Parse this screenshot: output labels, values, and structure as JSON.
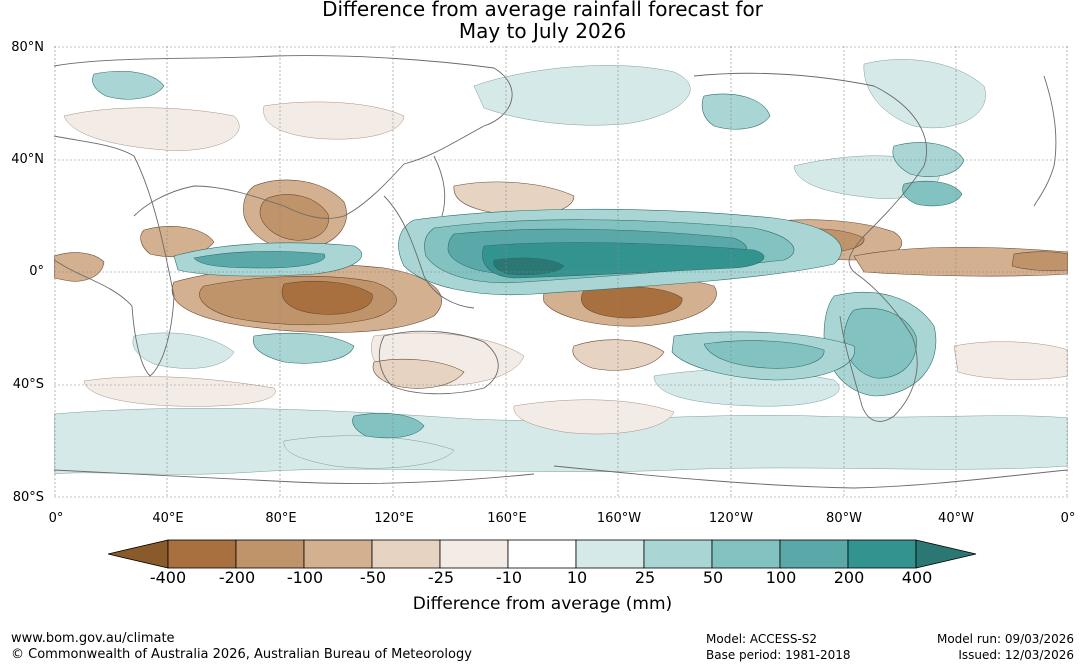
{
  "title": {
    "line1": "Difference from average rainfall forecast for",
    "line2": "May to July 2026"
  },
  "axes": {
    "y_ticks": [
      "80°N",
      "40°N",
      "0°",
      "40°S",
      "80°S"
    ],
    "x_ticks": [
      "0°",
      "40°E",
      "80°E",
      "120°E",
      "160°E",
      "160°W",
      "120°W",
      "80°W",
      "40°W",
      "0°"
    ]
  },
  "colorbar": {
    "title": "Difference from average (mm)",
    "labels": [
      "-400",
      "-200",
      "-100",
      "-50",
      "-25",
      "-10",
      "10",
      "25",
      "50",
      "100",
      "200",
      "400"
    ],
    "colors": [
      "#8b5a2b",
      "#a8703e",
      "#c0946a",
      "#d3b08f",
      "#e6d3c2",
      "#f3ece6",
      "#ffffff",
      "#d4e9e8",
      "#a9d6d5",
      "#82c2c1",
      "#5aa9a8",
      "#33948f",
      "#2a7773"
    ]
  },
  "footer": {
    "url": "www.bom.gov.au/climate",
    "copyright": "© Commonwealth of Australia 2026, Australian Bureau of Meteorology",
    "model": "Model: ACCESS-S2",
    "base_period": "Base period: 1981-2018",
    "model_run": "Model run: 09/03/2026",
    "issued": "Issued: 12/03/2026"
  }
}
